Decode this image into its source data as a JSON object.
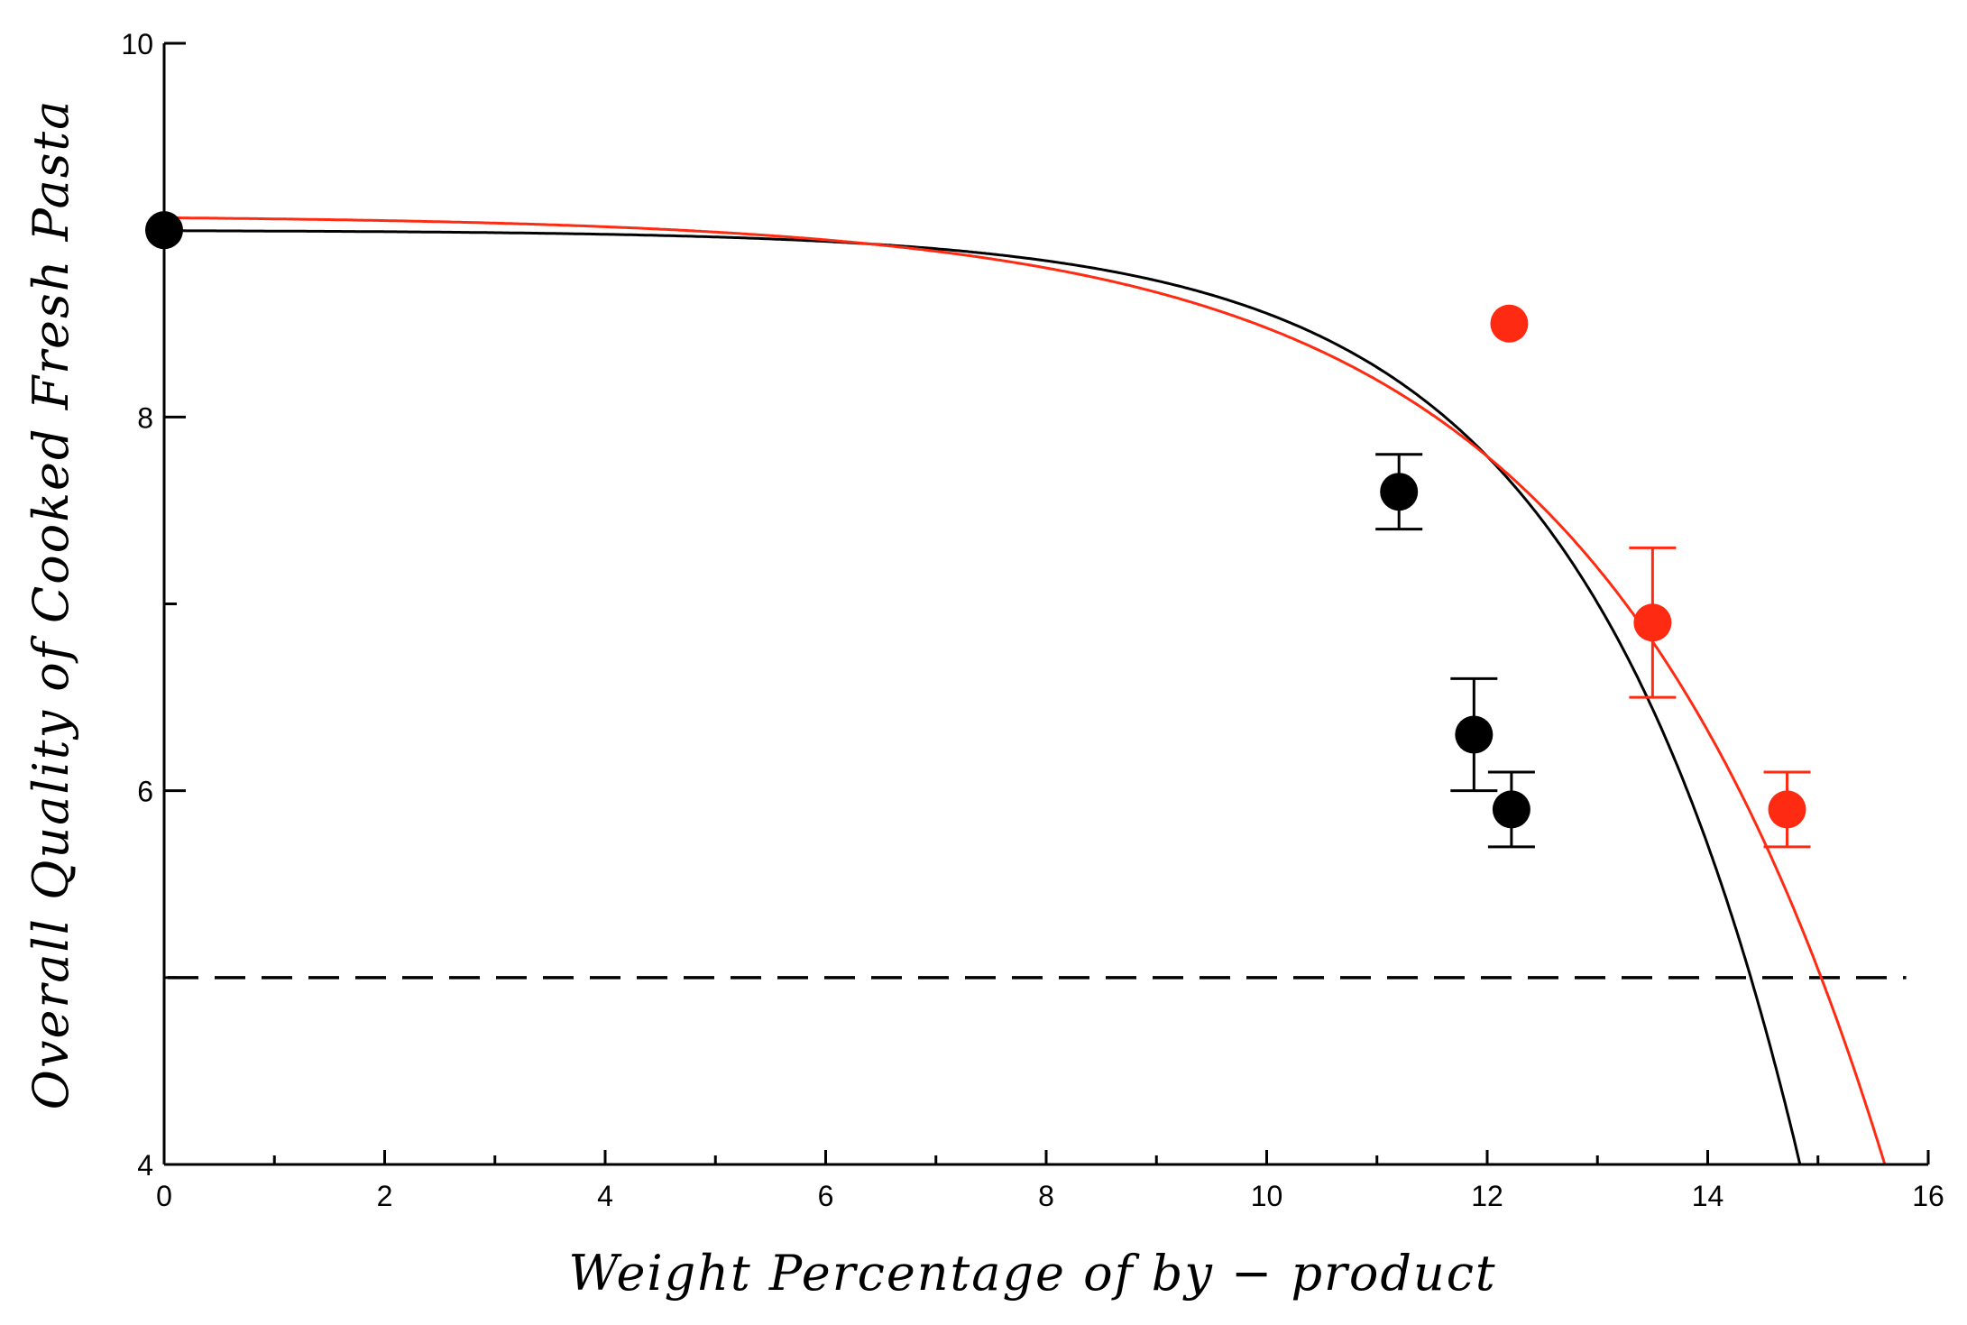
{
  "chart_data": {
    "type": "scatter",
    "title": "",
    "xlabel": "Weight Percentage of by − product",
    "ylabel": "Overall Quality of Cooked Fresh Pasta",
    "xlim": [
      0,
      16
    ],
    "ylim": [
      4,
      10
    ],
    "x_ticks": [
      0,
      2,
      4,
      6,
      8,
      10,
      12,
      14,
      16
    ],
    "x_tick_labels": [
      "0",
      "2",
      "4",
      "6",
      "8",
      "10",
      "12",
      "14",
      "16"
    ],
    "y_ticks": [
      4,
      6,
      8,
      10
    ],
    "y_tick_labels": [
      "4",
      "6",
      "8",
      "10"
    ],
    "threshold": {
      "y": 5,
      "style": "dashed",
      "color": "#000000"
    },
    "series": [
      {
        "name": "black",
        "color": "#000000",
        "points": [
          {
            "x": 0.0,
            "y": 9.0,
            "err": 0.0
          },
          {
            "x": 11.2,
            "y": 7.6,
            "err": 0.2
          },
          {
            "x": 11.88,
            "y": 6.3,
            "err": 0.3
          },
          {
            "x": 12.22,
            "y": 5.9,
            "err": 0.2
          }
        ],
        "fit": {
          "model": "y = a - b*exp(c*x)",
          "a": 9.0,
          "b": 0.003,
          "c": 0.5
        }
      },
      {
        "name": "red",
        "color": "#ff2a12",
        "points": [
          {
            "x": 12.2,
            "y": 8.5,
            "err": 0.0
          },
          {
            "x": 13.5,
            "y": 6.9,
            "err": 0.4
          },
          {
            "x": 14.72,
            "y": 5.9,
            "err": 0.2
          }
        ],
        "fit": {
          "model": "y = a - b*exp(c*x)",
          "a": 9.08,
          "b": 0.0135,
          "c": 0.38
        }
      }
    ]
  }
}
